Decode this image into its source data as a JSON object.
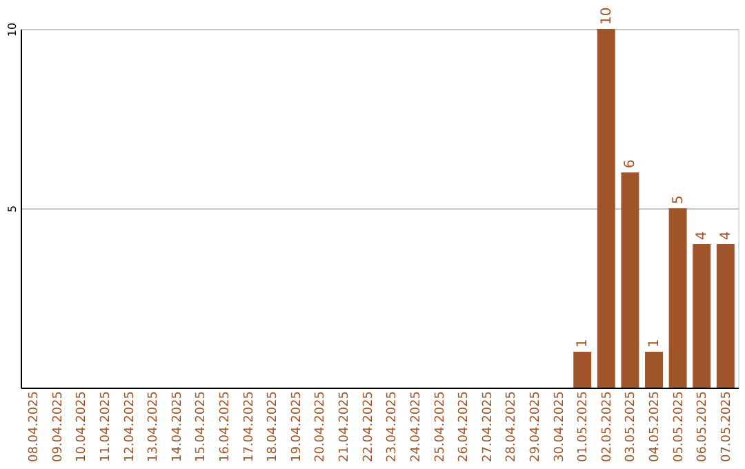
{
  "chart_data": {
    "type": "bar",
    "categories": [
      "08.04.2025",
      "09.04.2025",
      "10.04.2025",
      "11.04.2025",
      "12.04.2025",
      "13.04.2025",
      "14.04.2025",
      "15.04.2025",
      "16.04.2025",
      "17.04.2025",
      "18.04.2025",
      "19.04.2025",
      "20.04.2025",
      "21.04.2025",
      "22.04.2025",
      "23.04.2025",
      "24.04.2025",
      "25.04.2025",
      "26.04.2025",
      "27.04.2025",
      "28.04.2025",
      "29.04.2025",
      "30.04.2025",
      "01.05.2025",
      "02.05.2025",
      "03.05.2025",
      "04.05.2025",
      "05.05.2025",
      "06.05.2025",
      "07.05.2025"
    ],
    "values": [
      0,
      0,
      0,
      0,
      0,
      0,
      0,
      0,
      0,
      0,
      0,
      0,
      0,
      0,
      0,
      0,
      0,
      0,
      0,
      0,
      0,
      0,
      0,
      1,
      10,
      6,
      1,
      5,
      4,
      4
    ],
    "value_labels": [
      null,
      null,
      null,
      null,
      null,
      null,
      null,
      null,
      null,
      null,
      null,
      null,
      null,
      null,
      null,
      null,
      null,
      null,
      null,
      null,
      null,
      null,
      null,
      "1",
      "10",
      "6",
      "1",
      "5",
      "4",
      "4"
    ],
    "color": "#a0562a",
    "ylim": [
      0,
      10
    ],
    "yticks": [
      5,
      10
    ],
    "grid": "y"
  }
}
